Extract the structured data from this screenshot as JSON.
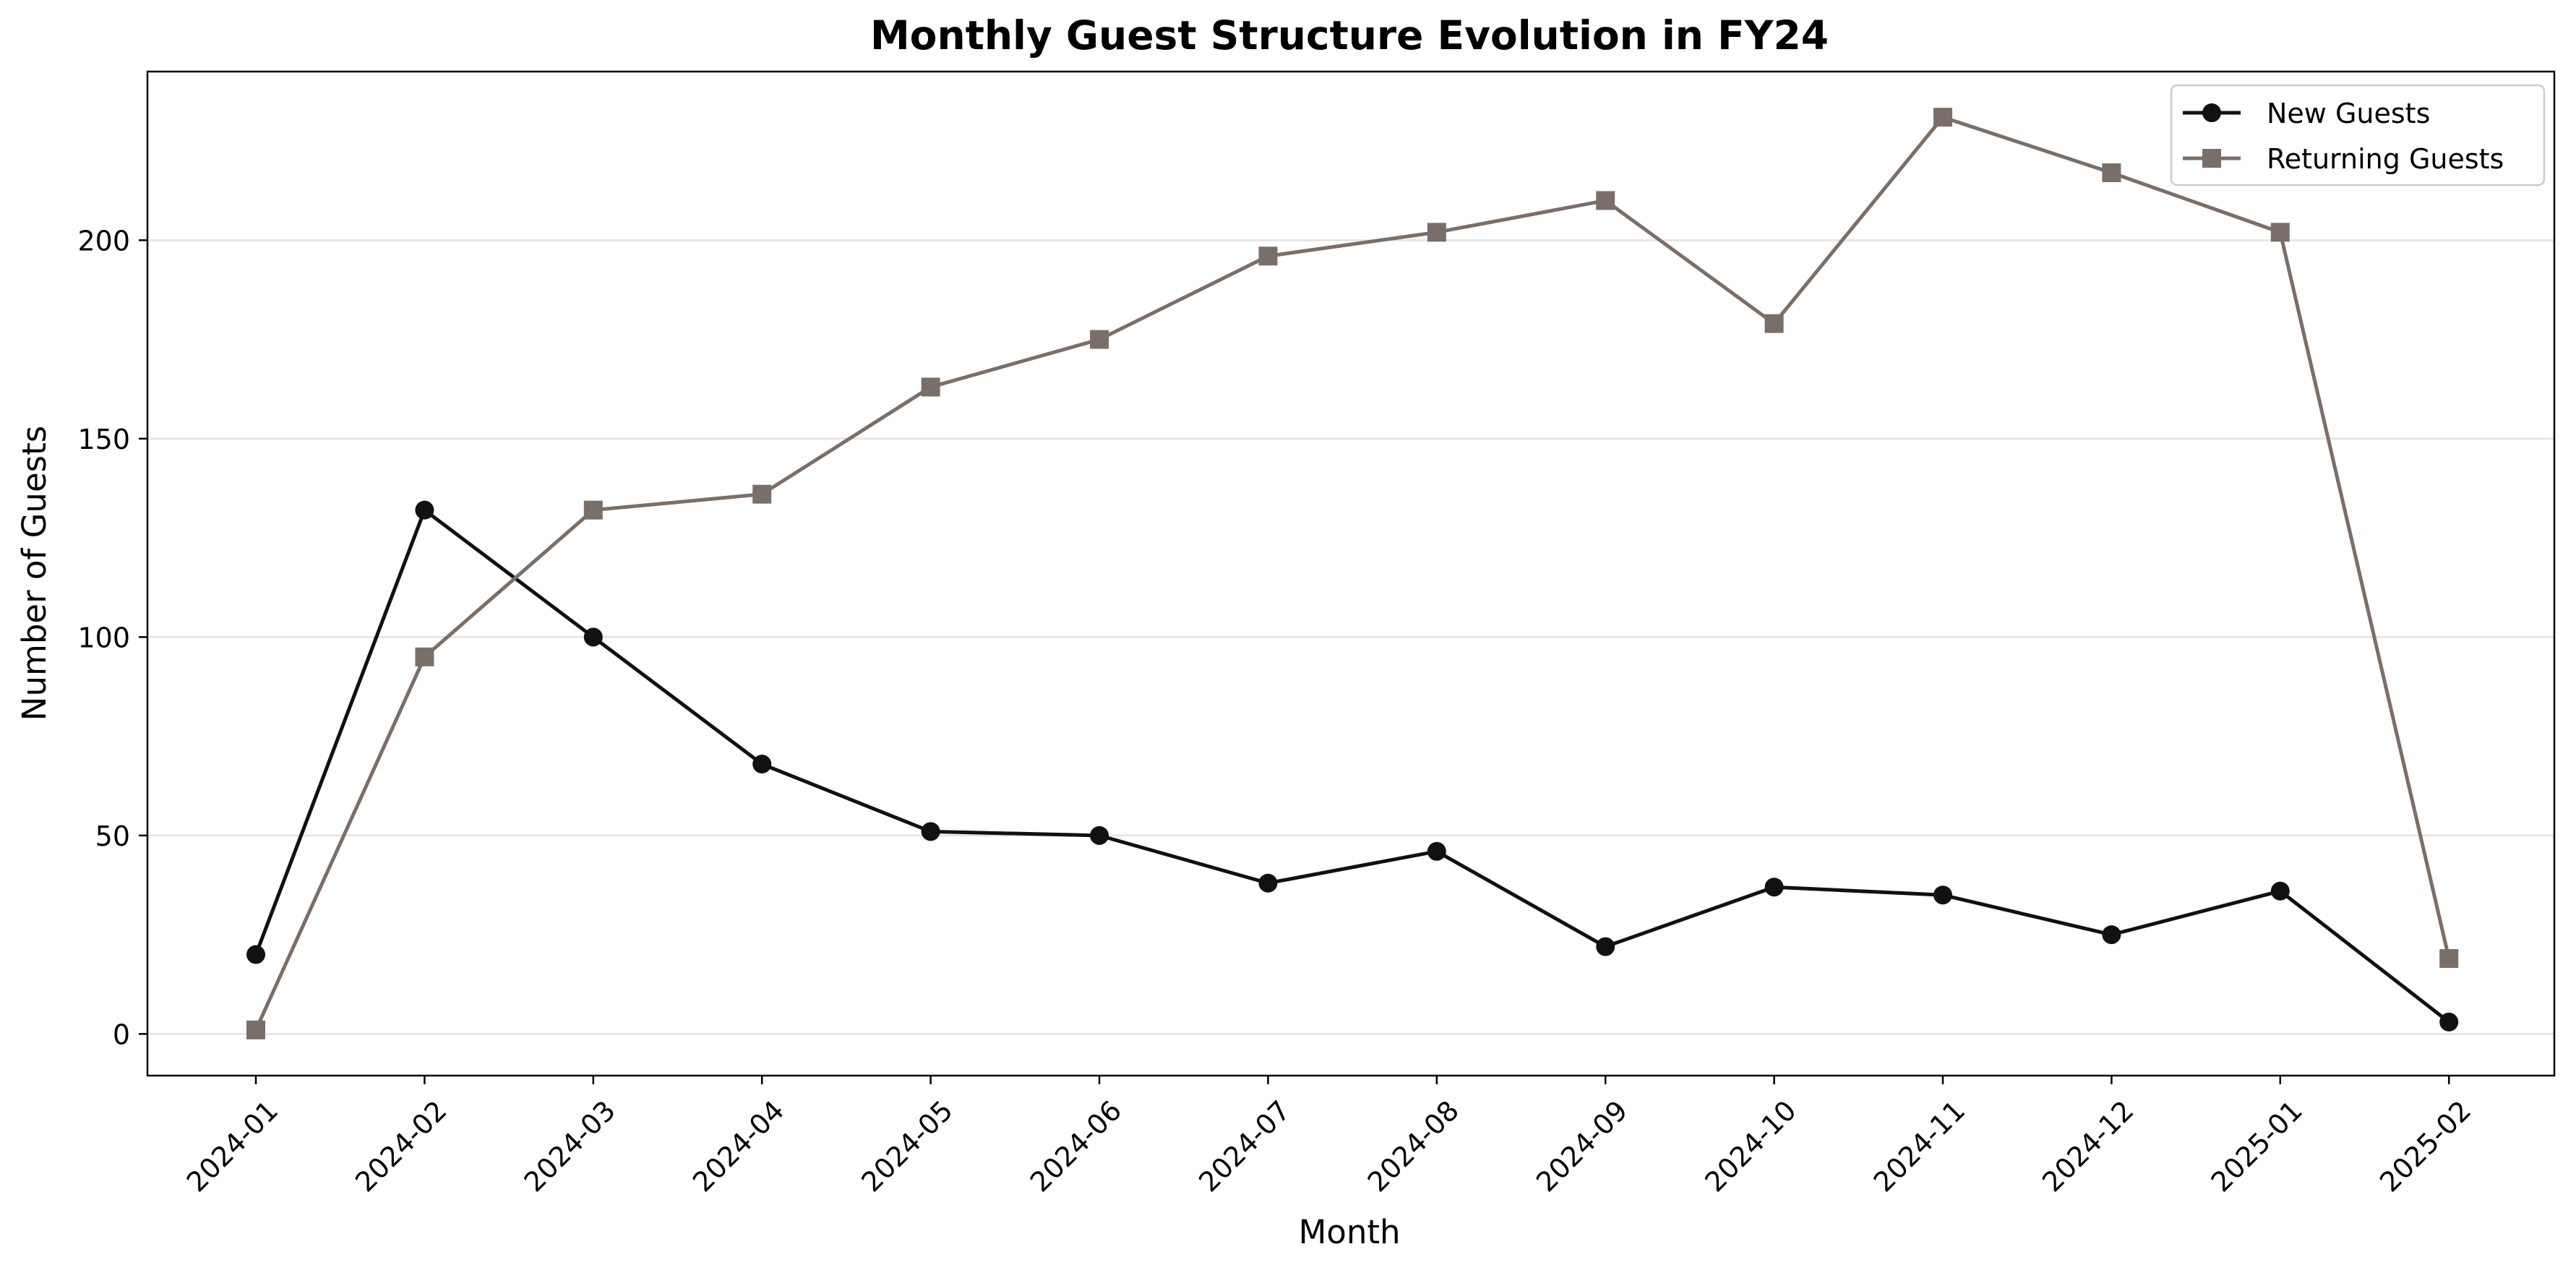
{
  "chart_data": {
    "type": "line",
    "title": "Monthly Guest Structure Evolution in FY24",
    "xlabel": "Month",
    "ylabel": "Number of Guests",
    "categories": [
      "2024-01",
      "2024-02",
      "2024-03",
      "2024-04",
      "2024-05",
      "2024-06",
      "2024-07",
      "2024-08",
      "2024-09",
      "2024-10",
      "2024-11",
      "2024-12",
      "2025-01",
      "2025-02"
    ],
    "ylim": [
      -10.5,
      242.5
    ],
    "yticks": [
      0,
      50,
      100,
      150,
      200
    ],
    "grid": "horizontal",
    "legend_position": "top-right",
    "series": [
      {
        "name": "New Guests",
        "marker": "circle",
        "color": "#111111",
        "values": [
          20,
          132,
          100,
          68,
          51,
          50,
          38,
          46,
          22,
          37,
          35,
          25,
          36,
          3
        ]
      },
      {
        "name": "Returning Guests",
        "marker": "square",
        "color": "#7a6f68",
        "values": [
          1,
          95,
          132,
          136,
          163,
          175,
          196,
          202,
          210,
          179,
          231,
          217,
          202,
          19
        ]
      }
    ]
  }
}
